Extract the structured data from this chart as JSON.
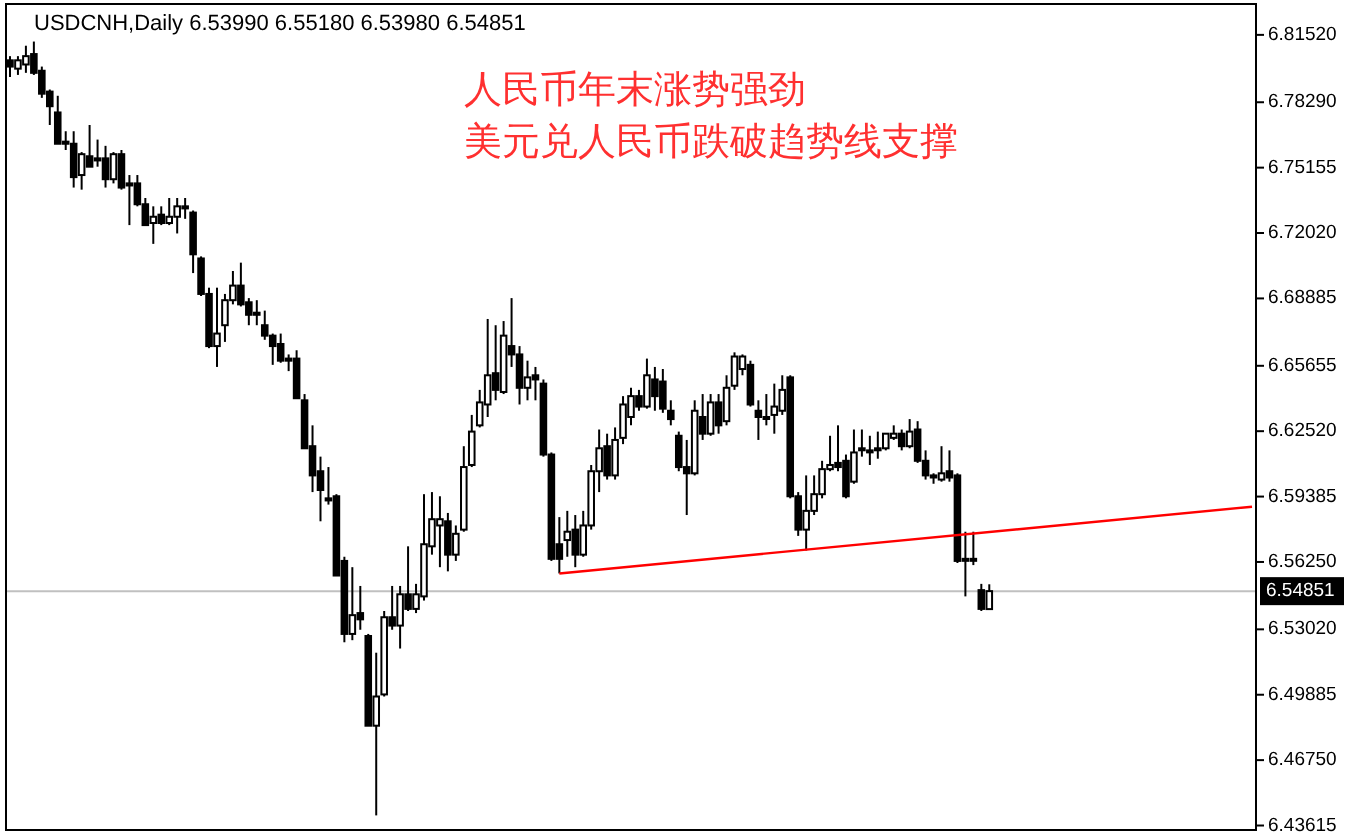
{
  "chart_data": {
    "type": "candlestick",
    "title": "USDCNH,Daily  6.53990 6.55180 6.53980 6.54851",
    "annotations": [
      "人民币年末涨势强劲",
      "美元兑人民币跌破趋势线支撑"
    ],
    "categories": [
      null,
      null,
      null,
      null,
      null,
      null,
      null,
      null,
      null,
      null,
      null,
      null,
      null,
      null,
      null,
      null,
      null,
      null,
      null,
      null,
      null,
      null,
      null,
      null,
      null,
      null,
      null,
      null,
      null,
      null,
      null,
      null,
      null,
      null,
      null,
      null,
      null,
      null,
      null,
      null,
      null,
      null,
      null,
      null,
      null,
      null,
      null,
      null,
      null,
      null,
      null,
      null,
      null,
      null,
      null,
      null,
      null,
      null,
      null,
      null,
      null,
      null,
      null,
      null,
      null,
      null,
      null,
      null,
      null,
      null,
      null,
      null,
      null,
      null,
      null,
      null,
      null,
      null,
      null,
      null,
      null,
      null,
      null,
      null,
      null,
      null,
      null,
      null,
      null,
      null,
      null,
      null,
      null,
      null,
      null,
      null,
      null,
      null,
      null,
      null,
      null,
      null,
      null,
      null,
      null,
      null,
      null,
      null,
      null,
      null,
      null,
      null,
      null,
      null,
      null,
      null,
      null,
      null,
      null,
      null,
      null,
      null,
      null,
      null,
      null,
      null,
      null,
      null,
      null,
      null,
      null,
      null,
      null,
      null,
      null,
      null,
      null,
      null,
      null,
      null,
      null,
      null,
      null,
      null,
      null,
      null,
      null,
      null,
      null,
      null,
      null,
      null,
      null,
      null,
      null,
      null,
      null
    ],
    "ohlc": [
      [
        6.803,
        6.805,
        6.795,
        6.8
      ],
      [
        6.799,
        6.805,
        6.796,
        6.803
      ],
      [
        6.801,
        6.81,
        6.797,
        6.805
      ],
      [
        6.806,
        6.812,
        6.796,
        6.797
      ],
      [
        6.798,
        6.8,
        6.785,
        6.787
      ],
      [
        6.788,
        6.789,
        6.772,
        6.781
      ],
      [
        6.778,
        6.786,
        6.763,
        6.763
      ],
      [
        6.764,
        6.769,
        6.76,
        6.763
      ],
      [
        6.763,
        6.769,
        6.742,
        6.747
      ],
      [
        6.748,
        6.759,
        6.741,
        6.758
      ],
      [
        6.757,
        6.772,
        6.752,
        6.752
      ],
      [
        6.756,
        6.765,
        6.752,
        6.755
      ],
      [
        6.756,
        6.762,
        6.742,
        6.746
      ],
      [
        6.746,
        6.759,
        6.744,
        6.758
      ],
      [
        6.758,
        6.76,
        6.741,
        6.742
      ],
      [
        6.744,
        6.748,
        6.724,
        6.743
      ],
      [
        6.744,
        6.748,
        6.733,
        6.734
      ],
      [
        6.734,
        6.737,
        6.724,
        6.724
      ],
      [
        6.725,
        6.733,
        6.715,
        6.728
      ],
      [
        6.729,
        6.733,
        6.724,
        6.725
      ],
      [
        6.725,
        6.737,
        6.724,
        6.728
      ],
      [
        6.728,
        6.737,
        6.72,
        6.733
      ],
      [
        6.733,
        6.737,
        6.727,
        6.732
      ],
      [
        6.73,
        6.731,
        6.701,
        6.71
      ],
      [
        6.708,
        6.709,
        6.69,
        6.691
      ],
      [
        6.691,
        6.694,
        6.665,
        6.666
      ],
      [
        6.666,
        6.694,
        6.656,
        6.672
      ],
      [
        6.676,
        6.691,
        6.668,
        6.688
      ],
      [
        6.688,
        6.702,
        6.686,
        6.695
      ],
      [
        6.695,
        6.706,
        6.685,
        6.686
      ],
      [
        6.687,
        6.689,
        6.676,
        6.681
      ],
      [
        6.682,
        6.688,
        6.676,
        6.681
      ],
      [
        6.676,
        6.683,
        6.669,
        6.671
      ],
      [
        6.671,
        6.672,
        6.657,
        6.666
      ],
      [
        6.667,
        6.672,
        6.658,
        6.659
      ],
      [
        6.66,
        6.662,
        6.654,
        6.659
      ],
      [
        6.66,
        6.664,
        6.641,
        6.641
      ],
      [
        6.64,
        6.643,
        6.617,
        6.617
      ],
      [
        6.618,
        6.628,
        6.596,
        6.604
      ],
      [
        6.606,
        6.613,
        6.582,
        6.597
      ],
      [
        6.593,
        6.608,
        6.59,
        6.592
      ],
      [
        6.594,
        6.595,
        6.556,
        6.556
      ],
      [
        6.563,
        6.565,
        6.524,
        6.528
      ],
      [
        6.528,
        6.56,
        6.525,
        6.537
      ],
      [
        6.538,
        6.551,
        6.53,
        6.535
      ],
      [
        6.527,
        6.528,
        6.484,
        6.484
      ],
      [
        6.484,
        6.519,
        6.441,
        6.498
      ],
      [
        6.499,
        6.539,
        6.498,
        6.536
      ],
      [
        6.536,
        6.551,
        6.53,
        6.532
      ],
      [
        6.532,
        6.551,
        6.521,
        6.547
      ],
      [
        6.547,
        6.57,
        6.539,
        6.54
      ],
      [
        6.54,
        6.552,
        6.538,
        6.547
      ],
      [
        6.546,
        6.595,
        6.544,
        6.571
      ],
      [
        6.57,
        6.596,
        6.566,
        6.583
      ],
      [
        6.58,
        6.594,
        6.56,
        6.583
      ],
      [
        6.582,
        6.586,
        6.558,
        6.566
      ],
      [
        6.566,
        6.58,
        6.563,
        6.576
      ],
      [
        6.578,
        6.618,
        6.577,
        6.608
      ],
      [
        6.609,
        6.633,
        6.608,
        6.625
      ],
      [
        6.628,
        6.645,
        6.627,
        6.639
      ],
      [
        6.638,
        6.679,
        6.632,
        6.652
      ],
      [
        6.653,
        6.676,
        6.64,
        6.645
      ],
      [
        6.644,
        6.678,
        6.643,
        6.671
      ],
      [
        6.666,
        6.689,
        6.656,
        6.662
      ],
      [
        6.662,
        6.666,
        6.638,
        6.646
      ],
      [
        6.646,
        6.659,
        6.64,
        6.651
      ],
      [
        6.652,
        6.656,
        6.64,
        6.65
      ],
      [
        6.648,
        6.65,
        6.613,
        6.614
      ],
      [
        6.614,
        6.615,
        6.563,
        6.564
      ],
      [
        6.571,
        6.584,
        6.557,
        6.564
      ],
      [
        6.573,
        6.587,
        6.565,
        6.577
      ],
      [
        6.578,
        6.585,
        6.56,
        6.566
      ],
      [
        6.566,
        6.587,
        6.565,
        6.58
      ],
      [
        6.58,
        6.609,
        6.578,
        6.606
      ],
      [
        6.606,
        6.626,
        6.596,
        6.617
      ],
      [
        6.618,
        6.624,
        6.602,
        6.604
      ],
      [
        6.604,
        6.627,
        6.602,
        6.621
      ],
      [
        6.622,
        6.642,
        6.619,
        6.638
      ],
      [
        6.632,
        6.646,
        6.628,
        6.642
      ],
      [
        6.642,
        6.645,
        6.635,
        6.637
      ],
      [
        6.637,
        6.66,
        6.636,
        6.652
      ],
      [
        6.65,
        6.656,
        6.635,
        6.642
      ],
      [
        6.649,
        6.655,
        6.634,
        6.636
      ],
      [
        6.635,
        6.64,
        6.628,
        6.631
      ],
      [
        6.623,
        6.625,
        6.606,
        6.608
      ],
      [
        6.608,
        6.621,
        6.585,
        6.605
      ],
      [
        6.605,
        6.64,
        6.604,
        6.635
      ],
      [
        6.632,
        6.643,
        6.621,
        6.624
      ],
      [
        6.624,
        6.643,
        6.623,
        6.639
      ],
      [
        6.639,
        6.643,
        6.624,
        6.628
      ],
      [
        6.63,
        6.652,
        6.628,
        6.646
      ],
      [
        6.647,
        6.663,
        6.645,
        6.661
      ],
      [
        6.655,
        6.662,
        6.652,
        6.661
      ],
      [
        6.657,
        6.659,
        6.637,
        6.638
      ],
      [
        6.635,
        6.64,
        6.621,
        6.632
      ],
      [
        6.632,
        6.643,
        6.628,
        6.6318
      ],
      [
        6.633,
        6.648,
        6.624,
        6.637
      ],
      [
        6.635,
        6.652,
        6.633,
        6.645
      ],
      [
        6.651,
        6.652,
        6.593,
        6.594
      ],
      [
        6.594,
        6.596,
        6.575,
        6.578
      ],
      [
        6.578,
        6.604,
        6.568,
        6.587
      ],
      [
        6.587,
        6.604,
        6.585,
        6.595
      ],
      [
        6.595,
        6.611,
        6.593,
        6.607
      ],
      [
        6.607,
        6.623,
        6.606,
        6.609
      ],
      [
        6.61,
        6.628,
        6.606,
        6.608
      ],
      [
        6.611,
        6.614,
        6.593,
        6.594
      ],
      [
        6.601,
        6.626,
        6.6,
        6.615
      ],
      [
        6.617,
        6.626,
        6.613,
        6.6165
      ],
      [
        6.616,
        6.623,
        6.609,
        6.6155
      ],
      [
        6.617,
        6.625,
        6.612,
        6.6165
      ],
      [
        6.617,
        6.624,
        6.616,
        6.624
      ],
      [
        6.622,
        6.628,
        6.621,
        6.624
      ],
      [
        6.624,
        6.626,
        6.616,
        6.618
      ],
      [
        6.618,
        6.631,
        6.617,
        6.625
      ],
      [
        6.626,
        6.63,
        6.61,
        6.611
      ],
      [
        6.611,
        6.616,
        6.602,
        6.604
      ],
      [
        6.604,
        6.605,
        6.6,
        6.603
      ],
      [
        6.602,
        6.618,
        6.601,
        6.605
      ],
      [
        6.606,
        6.616,
        6.601,
        6.603
      ],
      [
        6.604,
        6.605,
        6.562,
        6.563
      ],
      [
        6.564,
        6.577,
        6.546,
        6.5637
      ],
      [
        6.564,
        6.577,
        6.561,
        6.5637
      ],
      [
        6.549,
        6.552,
        6.539,
        6.54
      ],
      [
        6.5399,
        6.5518,
        6.5398,
        6.54851
      ],
      null,
      null,
      null,
      null,
      null,
      null,
      null,
      null,
      null,
      null,
      null,
      null,
      null,
      null,
      null,
      null,
      null,
      null,
      null,
      null,
      null,
      null,
      null,
      null,
      null,
      null,
      null,
      null,
      null,
      null,
      null,
      null,
      null
    ],
    "series": [
      {
        "type": "line",
        "color": "#ff0000",
        "values": [
          null,
          null,
          null,
          null,
          null,
          null,
          null,
          null,
          null,
          null,
          null,
          null,
          null,
          null,
          null,
          null,
          null,
          null,
          null,
          null,
          null,
          null,
          null,
          null,
          null,
          null,
          null,
          null,
          null,
          null,
          null,
          null,
          null,
          null,
          null,
          null,
          null,
          null,
          null,
          null,
          null,
          null,
          null,
          null,
          null,
          null,
          null,
          null,
          null,
          null,
          null,
          null,
          null,
          null,
          null,
          null,
          null,
          null,
          null,
          null,
          null,
          null,
          null,
          null,
          null,
          null,
          null,
          null,
          null,
          6.557,
          null,
          null,
          null,
          null,
          null,
          null,
          null,
          null,
          null,
          null,
          null,
          null,
          null,
          null,
          null,
          null,
          null,
          null,
          null,
          null,
          null,
          null,
          null,
          null,
          null,
          null,
          null,
          null,
          null,
          null,
          null,
          null,
          null,
          null,
          null,
          null,
          null,
          null,
          null,
          null,
          null,
          null,
          null,
          null,
          null,
          null,
          null,
          null,
          null,
          null,
          null,
          null,
          null,
          null,
          null,
          null,
          null,
          null,
          null,
          null,
          null,
          null,
          null,
          null,
          null,
          null,
          null,
          null,
          null,
          null,
          null,
          null,
          null,
          null,
          null,
          null,
          null,
          null,
          null,
          null,
          null,
          null,
          null,
          null,
          null,
          null,
          6.589
        ]
      }
    ],
    "ref_lines": [
      {
        "axis": "y",
        "value": 6.54851,
        "label": "6.54851",
        "color": "#c0c0c0"
      }
    ],
    "ylim": [
      6.434,
      6.83
    ],
    "yticks": [
      {
        "value": 6.8152,
        "label": "6.81520"
      },
      {
        "value": 6.7829,
        "label": "6.78290"
      },
      {
        "value": 6.75155,
        "label": "6.75155"
      },
      {
        "value": 6.7202,
        "label": "6.72020"
      },
      {
        "value": 6.68885,
        "label": "6.68885"
      },
      {
        "value": 6.65655,
        "label": "6.65655"
      },
      {
        "value": 6.6252,
        "label": "6.62520"
      },
      {
        "value": 6.59385,
        "label": "6.59385"
      },
      {
        "value": 6.5625,
        "label": "6.56250"
      },
      {
        "value": 6.5302,
        "label": "6.53020"
      },
      {
        "value": 6.49885,
        "label": "6.49885"
      },
      {
        "value": 6.4675,
        "label": "6.46750"
      },
      {
        "value": 6.43615,
        "label": "6.43615"
      }
    ]
  }
}
